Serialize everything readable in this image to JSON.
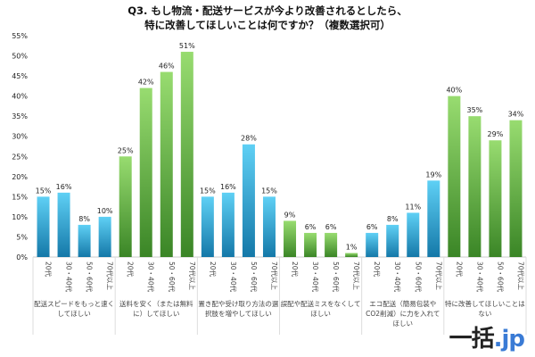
{
  "chart_data": {
    "type": "bar",
    "title": "Q3. もし物流・配送サービスが今より改善されるとしたら、\n特に改善してほしいことは何ですか？（複数選択可）",
    "title_lines": [
      "Q3. もし物流・配送サービスが今より改善されるとしたら、",
      "特に改善してほしいことは何ですか？（複数選択可）"
    ],
    "ylim": [
      0,
      55
    ],
    "yticks": [
      "0%",
      "5%",
      "10%",
      "15%",
      "20%",
      "25%",
      "30%",
      "35%",
      "40%",
      "45%",
      "50%",
      "55%"
    ],
    "grid": false,
    "subcategories": [
      "20代",
      "30・40代",
      "50・60代",
      "70代以上"
    ],
    "groups": [
      {
        "label": "配送スピードをもっと速くしてほしい",
        "label_lines": [
          "配送スピードをもっと速く",
          "してほしい"
        ],
        "values": [
          15,
          16,
          8,
          10
        ],
        "color": "blue"
      },
      {
        "label": "送料を安く（または無料に）してほしい",
        "label_lines": [
          "送料を安く（または無料",
          "に）してほしい"
        ],
        "values": [
          25,
          42,
          46,
          51
        ],
        "color": "green"
      },
      {
        "label": "置き配や受け取り方法の選択肢を増やしてほしい",
        "label_lines": [
          "置き配や受け取り方法の選",
          "択肢を増やしてほしい"
        ],
        "values": [
          15,
          16,
          28,
          15
        ],
        "color": "blue"
      },
      {
        "label": "誤配や配送ミスをなくしてほしい",
        "label_lines": [
          "誤配や配送ミスをなくして",
          "ほしい"
        ],
        "values": [
          9,
          6,
          6,
          1
        ],
        "color": "green"
      },
      {
        "label": "エコ配送（簡易包装やCO2削減）に力を入れてほしい",
        "label_lines": [
          "エコ配送（簡易包装や",
          "CO2削減）に力を入れて",
          "ほしい"
        ],
        "values": [
          6,
          8,
          11,
          19
        ],
        "color": "blue"
      },
      {
        "label": "特に改善してほしいことはない",
        "label_lines": [
          "特に改善してほしいことは",
          "ない"
        ],
        "values": [
          40,
          35,
          29,
          34
        ],
        "color": "green"
      }
    ],
    "value_suffix": "%",
    "colors": {
      "blue_top": "#5fd0f5",
      "blue_bottom": "#1478a8",
      "green_top": "#98dc70",
      "green_bottom": "#3a8526"
    }
  },
  "logo": {
    "main": "一括",
    "suffix": ".jp"
  }
}
